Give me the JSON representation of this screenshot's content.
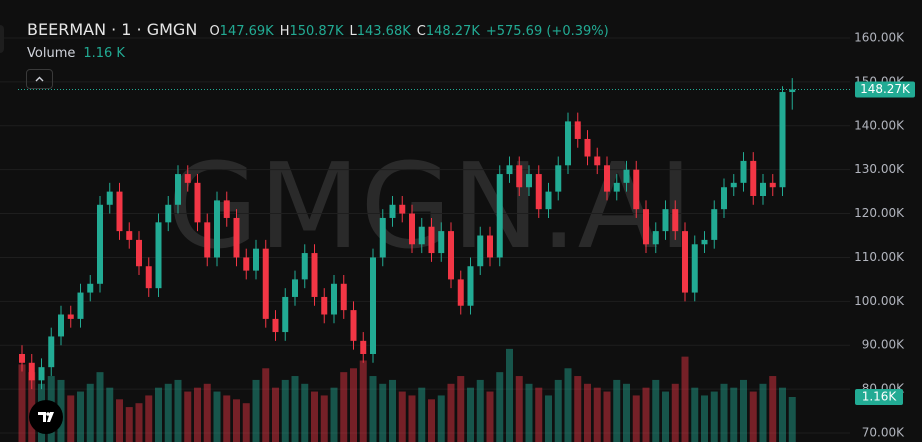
{
  "header": {
    "symbol": "BEERMAN · 1 · GMGN",
    "fields": [
      {
        "key": "O",
        "value": "147.69K"
      },
      {
        "key": "H",
        "value": "150.87K"
      },
      {
        "key": "L",
        "value": "143.68K"
      },
      {
        "key": "C",
        "value": "148.27K"
      }
    ],
    "change": "+575.69 (+0.39%)",
    "volume_label": "Volume",
    "volume_value": "1.16 K"
  },
  "watermark": "GMGN.AI",
  "chart_data": {
    "type": "candlestick",
    "categories": [
      null,
      null,
      null,
      null,
      null,
      null,
      null,
      null,
      null,
      null,
      null,
      null,
      null,
      null,
      null,
      null,
      null,
      null,
      null,
      null,
      null,
      null,
      null,
      null,
      null,
      null,
      null,
      null,
      null,
      null,
      null,
      null,
      null,
      null,
      null,
      null,
      null,
      null,
      null,
      null,
      null,
      null,
      null,
      null,
      null,
      null,
      null,
      null,
      null,
      null,
      null,
      null,
      null,
      null,
      null,
      null,
      null,
      null,
      null,
      null,
      null,
      null,
      null,
      null,
      null,
      null,
      null,
      null,
      null,
      null,
      null,
      null,
      null,
      null,
      null,
      null,
      null,
      null,
      null,
      null
    ],
    "open": [
      88,
      86,
      82,
      85,
      92,
      97,
      96,
      102,
      104,
      122,
      125,
      116,
      114,
      108,
      103,
      118,
      122,
      129,
      127,
      118,
      110,
      123,
      119,
      110,
      107,
      112,
      96,
      93,
      101,
      105,
      111,
      101,
      97,
      104,
      98,
      91,
      88,
      110,
      119,
      122,
      120,
      113,
      117,
      111,
      116,
      105,
      99,
      108,
      115,
      110,
      129,
      131,
      126,
      129,
      121,
      125,
      131,
      141,
      137,
      133,
      131,
      125,
      127,
      130,
      121,
      113,
      116,
      121,
      116,
      102,
      113,
      114,
      121,
      126,
      127,
      132,
      124,
      127,
      126,
      147.69
    ],
    "high": [
      90,
      88,
      87,
      94,
      99,
      99,
      104,
      106,
      124,
      127,
      127,
      118,
      116,
      110,
      120,
      124,
      131,
      131,
      129,
      120,
      125,
      125,
      121,
      112,
      114,
      114,
      98,
      103,
      107,
      113,
      113,
      103,
      106,
      106,
      100,
      93,
      112,
      121,
      124,
      124,
      122,
      119,
      119,
      118,
      118,
      107,
      110,
      117,
      117,
      131,
      133,
      133,
      131,
      131,
      127,
      133,
      143,
      143,
      139,
      135,
      133,
      129,
      132,
      132,
      123,
      118,
      123,
      123,
      118,
      115,
      116,
      123,
      128,
      129,
      134,
      134,
      129,
      129,
      149,
      150.87
    ],
    "low": [
      84,
      80,
      80,
      83,
      90,
      94,
      94,
      100,
      102,
      120,
      114,
      112,
      106,
      101,
      101,
      116,
      120,
      125,
      116,
      108,
      108,
      117,
      108,
      105,
      105,
      94,
      91,
      91,
      99,
      103,
      99,
      95,
      95,
      96,
      89,
      86,
      86,
      108,
      117,
      118,
      111,
      111,
      109,
      109,
      103,
      97,
      97,
      106,
      108,
      108,
      127,
      124,
      124,
      119,
      119,
      123,
      129,
      135,
      131,
      129,
      123,
      123,
      125,
      119,
      111,
      111,
      114,
      114,
      100,
      100,
      111,
      112,
      119,
      124,
      125,
      122,
      122,
      124,
      124,
      143.68
    ],
    "close": [
      86,
      82,
      85,
      92,
      97,
      96,
      102,
      104,
      122,
      125,
      116,
      114,
      108,
      103,
      118,
      122,
      129,
      127,
      118,
      110,
      123,
      119,
      110,
      107,
      112,
      96,
      93,
      101,
      105,
      111,
      101,
      97,
      104,
      98,
      91,
      88,
      110,
      119,
      122,
      120,
      113,
      117,
      111,
      116,
      105,
      99,
      108,
      115,
      110,
      129,
      131,
      126,
      129,
      121,
      125,
      131,
      141,
      137,
      133,
      131,
      125,
      127,
      130,
      121,
      113,
      116,
      121,
      116,
      102,
      113,
      114,
      121,
      126,
      127,
      132,
      124,
      127,
      126,
      147.69,
      148.27
    ],
    "volume": [
      2.0,
      1.8,
      1.5,
      1.7,
      1.6,
      1.2,
      1.3,
      1.5,
      1.8,
      1.4,
      1.1,
      0.9,
      1.0,
      1.2,
      1.4,
      1.5,
      1.6,
      1.3,
      1.4,
      1.5,
      1.3,
      1.2,
      1.1,
      1.0,
      1.6,
      1.9,
      1.4,
      1.6,
      1.7,
      1.5,
      1.3,
      1.2,
      1.4,
      1.8,
      1.9,
      2.1,
      1.7,
      1.5,
      1.6,
      1.3,
      1.2,
      1.4,
      1.1,
      1.2,
      1.5,
      1.7,
      1.4,
      1.6,
      1.3,
      1.8,
      2.4,
      1.7,
      1.5,
      1.4,
      1.2,
      1.6,
      1.9,
      1.7,
      1.5,
      1.4,
      1.3,
      1.6,
      1.5,
      1.2,
      1.4,
      1.6,
      1.3,
      1.5,
      2.2,
      1.4,
      1.2,
      1.3,
      1.5,
      1.4,
      1.6,
      1.3,
      1.5,
      1.7,
      1.4,
      1.16
    ],
    "up_color": "#22ab94",
    "down_color": "#f23645",
    "ylim": [
      67.95,
      168.66
    ],
    "volume_lim": [
      0,
      2.5
    ],
    "yticks": [
      {
        "value": 70,
        "label": "70.00K"
      },
      {
        "value": 80,
        "label": "80.00K"
      },
      {
        "value": 90,
        "label": "90.00K"
      },
      {
        "value": 100,
        "label": "100.00K"
      },
      {
        "value": 110,
        "label": "110.00K"
      },
      {
        "value": 120,
        "label": "120.00K"
      },
      {
        "value": 130,
        "label": "130.00K"
      },
      {
        "value": 140,
        "label": "140.00K"
      },
      {
        "value": 150,
        "label": "150.00K"
      },
      {
        "value": 160,
        "label": "160.00K"
      }
    ],
    "grid": true,
    "last_price": {
      "value": 148.27,
      "label": "148.27K"
    },
    "last_volume": {
      "value": 1.16,
      "label": "1.16K"
    }
  }
}
